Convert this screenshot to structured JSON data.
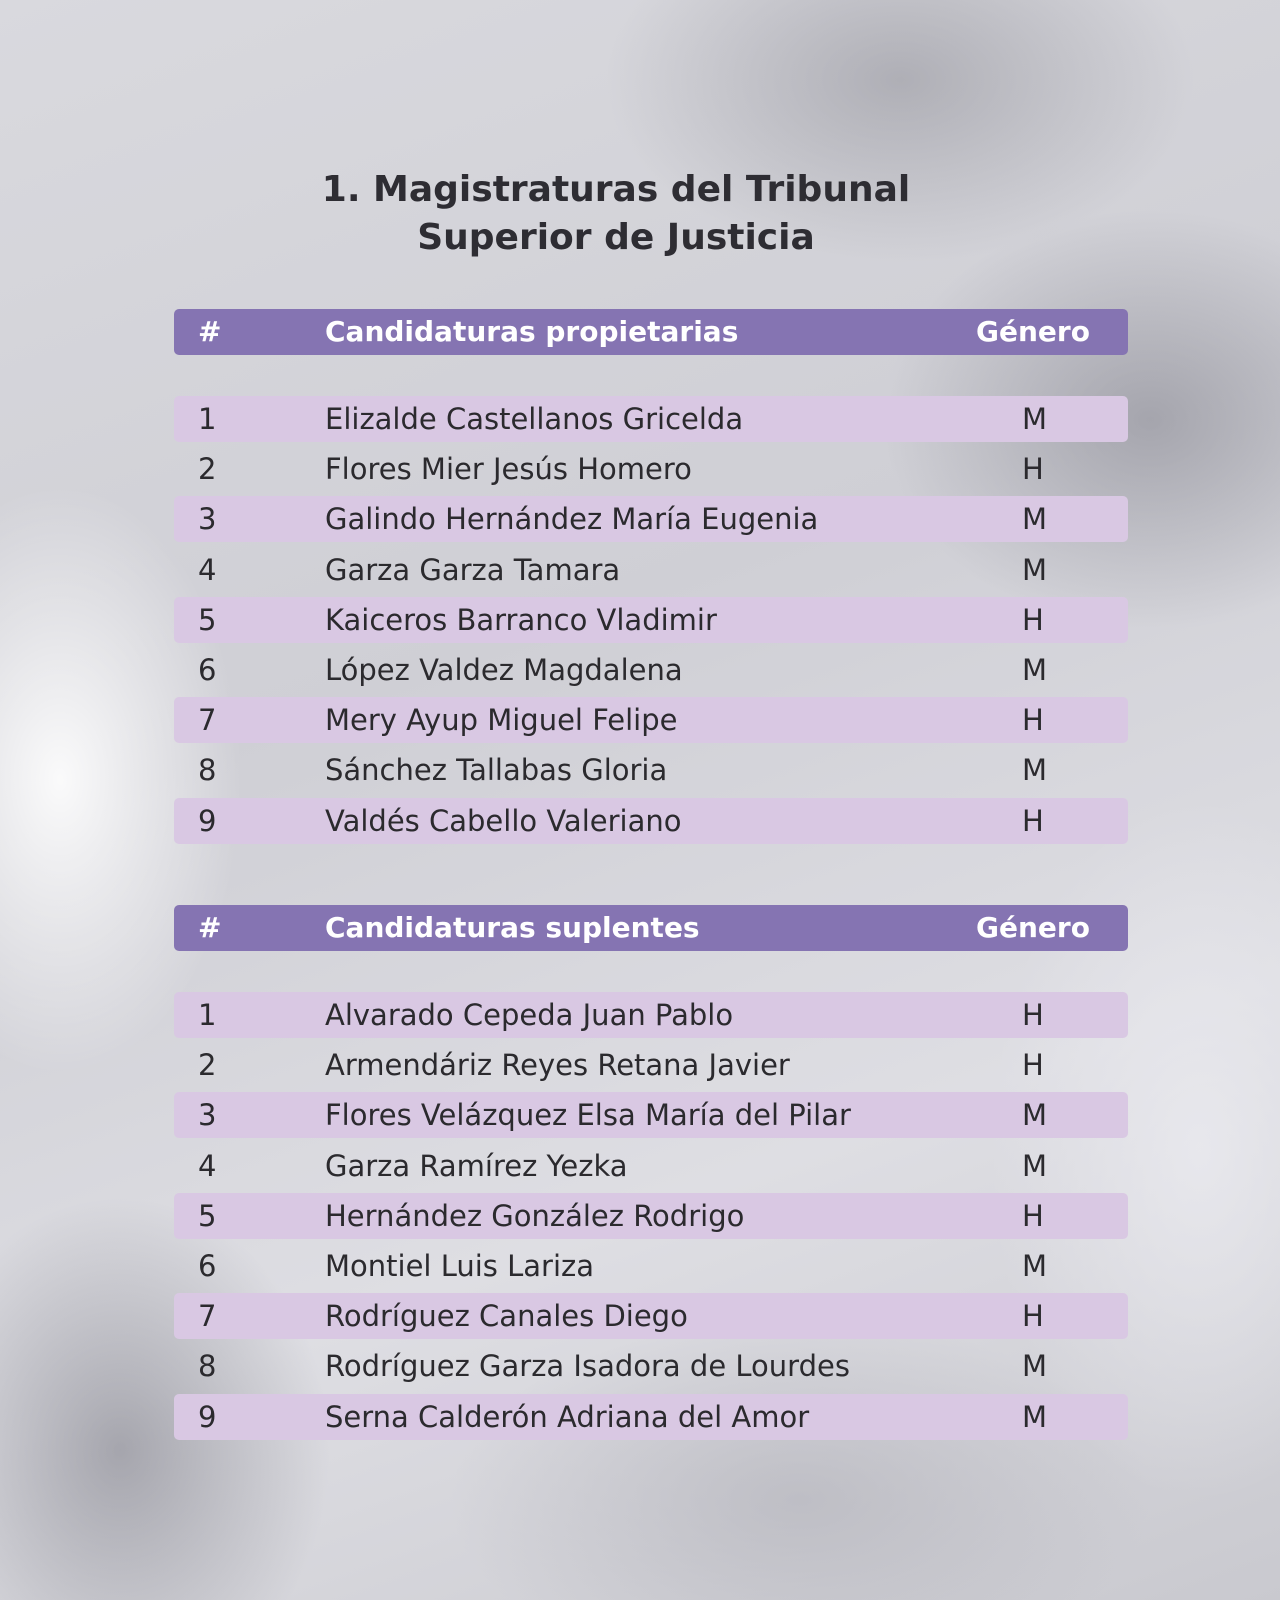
{
  "title": {
    "line1": "1. Magistraturas del Tribunal",
    "line2": "Superior de Justicia"
  },
  "colors": {
    "header": "#8574b2",
    "row_shade": "#d9c8e3"
  },
  "tables": [
    {
      "headers": {
        "num": "#",
        "name": "Candidaturas propietarias",
        "gender": "Género"
      },
      "rows": [
        {
          "num": "1",
          "name": "Elizalde Castellanos Gricelda",
          "gender": "M"
        },
        {
          "num": "2",
          "name": "Flores Mier Jesús Homero",
          "gender": "H"
        },
        {
          "num": "3",
          "name": "Galindo Hernández María Eugenia",
          "gender": "M"
        },
        {
          "num": "4",
          "name": "Garza Garza Tamara",
          "gender": "M"
        },
        {
          "num": "5",
          "name": "Kaiceros Barranco Vladimir",
          "gender": "H"
        },
        {
          "num": "6",
          "name": "López Valdez Magdalena",
          "gender": "M"
        },
        {
          "num": "7",
          "name": "Mery Ayup Miguel Felipe",
          "gender": "H"
        },
        {
          "num": "8",
          "name": "Sánchez Tallabas Gloria",
          "gender": "M"
        },
        {
          "num": "9",
          "name": "Valdés Cabello Valeriano",
          "gender": "H"
        }
      ]
    },
    {
      "headers": {
        "num": "#",
        "name": "Candidaturas suplentes",
        "gender": "Género"
      },
      "rows": [
        {
          "num": "1",
          "name": "Alvarado Cepeda Juan Pablo",
          "gender": "H"
        },
        {
          "num": "2",
          "name": "Armendáriz Reyes Retana Javier",
          "gender": "H"
        },
        {
          "num": "3",
          "name": "Flores Velázquez Elsa María del Pilar",
          "gender": "M"
        },
        {
          "num": "4",
          "name": "Garza Ramírez Yezka",
          "gender": "M"
        },
        {
          "num": "5",
          "name": "Hernández González Rodrigo",
          "gender": "H"
        },
        {
          "num": "6",
          "name": "Montiel Luis Lariza",
          "gender": "M"
        },
        {
          "num": "7",
          "name": "Rodríguez Canales Diego",
          "gender": "H"
        },
        {
          "num": "8",
          "name": "Rodríguez Garza Isadora de Lourdes",
          "gender": "M"
        },
        {
          "num": "9",
          "name": "Serna Calderón Adriana del Amor",
          "gender": "M"
        }
      ]
    }
  ]
}
